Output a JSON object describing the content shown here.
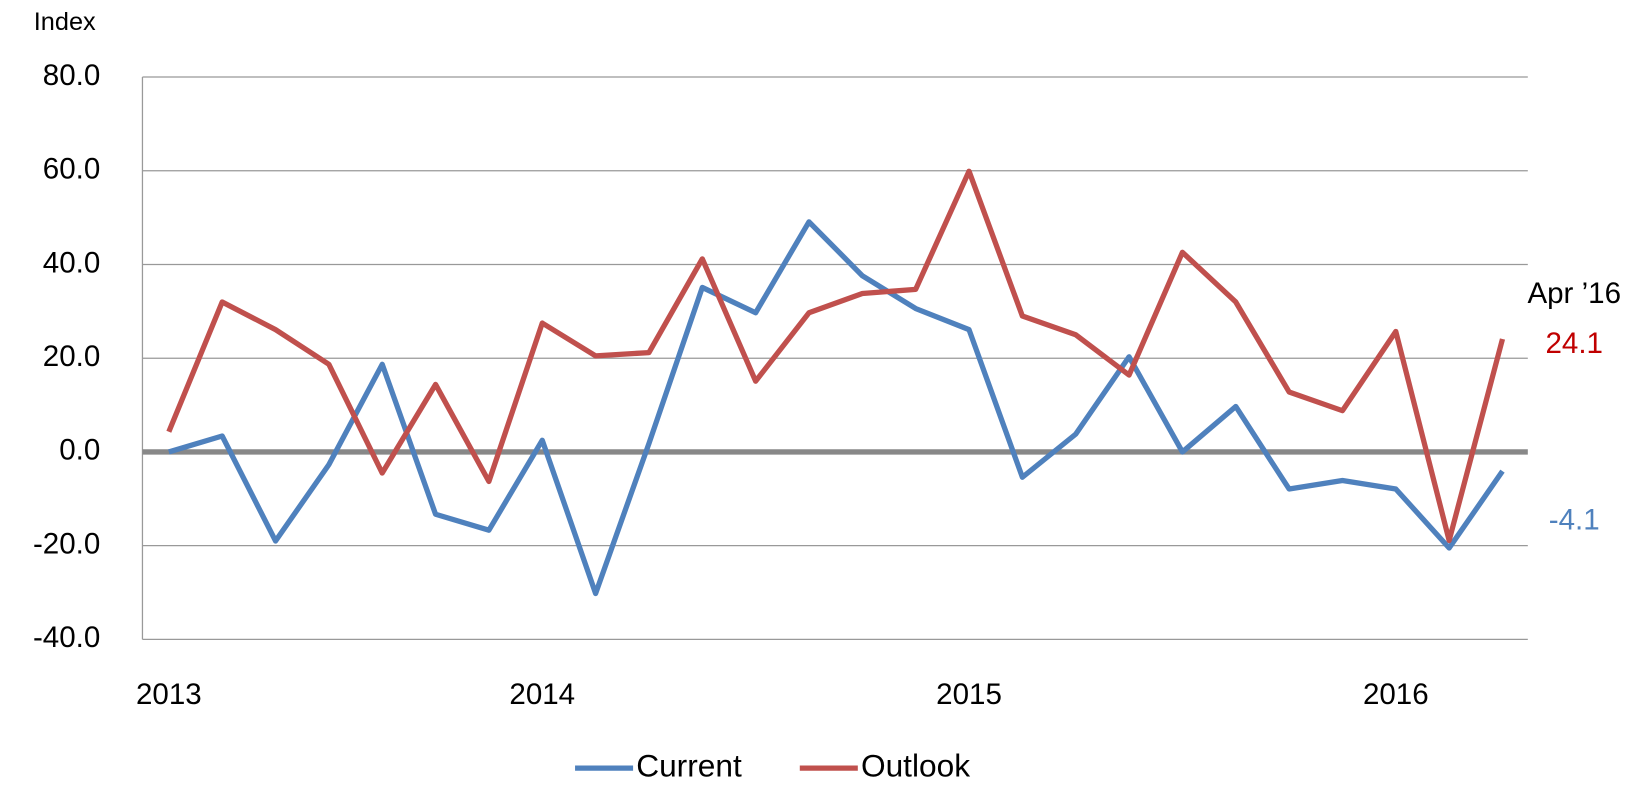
{
  "chart_data": {
    "type": "line",
    "y_axis_label": "Index",
    "categories": [
      "2013",
      null,
      null,
      null,
      null,
      null,
      null,
      "2014",
      null,
      null,
      null,
      null,
      null,
      null,
      null,
      "2015",
      null,
      null,
      null,
      null,
      null,
      null,
      null,
      "2016",
      null,
      null
    ],
    "series": [
      {
        "name": "Current",
        "color": "#4f81bd",
        "label_color": "#4f81bd",
        "values": [
          0,
          3.4,
          -19,
          -2.7,
          18.7,
          -13.3,
          -16.7,
          2.5,
          -30.2,
          1.8,
          35.1,
          29.7,
          49.1,
          37.6,
          30.6,
          26.1,
          -5.4,
          3.8,
          20.3,
          0,
          9.7,
          -7.9,
          -6.1,
          -7.9,
          -20.5,
          -4.1
        ]
      },
      {
        "name": "Outlook",
        "color": "#c0504d",
        "label_color": "#c00000",
        "values": [
          4.3,
          32,
          26.1,
          18.7,
          -4.5,
          14.4,
          -6.3,
          27.5,
          20.5,
          21.2,
          41.2,
          15.1,
          29.7,
          33.8,
          34.7,
          59.9,
          29,
          25,
          16.4,
          42.6,
          32,
          12.8,
          8.8,
          25.7,
          -18.9,
          24.1
        ]
      }
    ],
    "annotation": "Apr ’16",
    "ylim": [
      -40,
      80
    ],
    "yticks": [
      {
        "value": -40,
        "label": "-40.0"
      },
      {
        "value": -20,
        "label": "-20.0"
      },
      {
        "value": 0,
        "label": "0.0"
      },
      {
        "value": 20,
        "label": "20.0"
      },
      {
        "value": 40,
        "label": "40.0"
      },
      {
        "value": 60,
        "label": "60.0"
      },
      {
        "value": 80,
        "label": "80.0"
      }
    ],
    "grid": true,
    "legend": "bottom"
  }
}
